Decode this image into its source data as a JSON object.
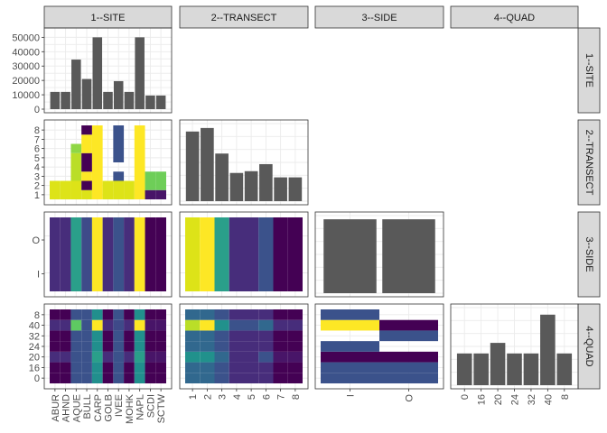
{
  "chart_data": {
    "type": "pairs-matrix",
    "variables": [
      "1--SITE",
      "2--TRANSECT",
      "3--SIDE",
      "4--QUAD"
    ],
    "scales": {
      "site": [
        "ABUR",
        "AHND",
        "AQUE",
        "BULL",
        "CARP",
        "GOLB",
        "IVEE",
        "MOHK",
        "NAPL",
        "SCDI",
        "SCTW"
      ],
      "transect": [
        "1",
        "2",
        "3",
        "4",
        "5",
        "6",
        "7",
        "8"
      ],
      "side": [
        "I",
        "O"
      ],
      "quad": [
        "0",
        "16",
        "20",
        "24",
        "32",
        "40",
        "8"
      ]
    },
    "site_y_ticks": [
      "0",
      "10000",
      "20000",
      "30000",
      "40000",
      "50000"
    ],
    "site_y_range": [
      0,
      54000
    ],
    "bars": {
      "site": {
        "values": [
          12000,
          12000,
          34500,
          21000,
          50000,
          12000,
          19500,
          12000,
          50000,
          9500,
          9500
        ],
        "max": 54000
      },
      "transect": {
        "values": [
          7.9,
          8.3,
          5.4,
          3.2,
          3.4,
          4.2,
          2.7,
          2.7
        ],
        "max": 8.8
      },
      "side": {
        "values": [
          1.0,
          1.0
        ],
        "max": 1.05
      },
      "quad": {
        "values": [
          4.5,
          4.5,
          6.0,
          4.5,
          4.5,
          10.0,
          4.5
        ],
        "max": 11.0
      }
    },
    "heatmaps": {
      "transect_by_site": {
        "columns": [
          [
            [
              1,
              2,
              "#dde318"
            ]
          ],
          [
            [
              1,
              2,
              "#dde318"
            ]
          ],
          [
            [
              1,
              2,
              "#dde318"
            ],
            [
              3,
              5,
              "#bade28"
            ],
            [
              6,
              6,
              "#8fd744"
            ]
          ],
          [
            [
              1,
              1,
              "#dde318"
            ],
            [
              2,
              2,
              "#440154"
            ],
            [
              3,
              3,
              "#fde725"
            ],
            [
              4,
              5,
              "#440154"
            ],
            [
              6,
              7,
              "#fde725"
            ],
            [
              8,
              8,
              "#440154"
            ]
          ],
          [
            [
              1,
              8,
              "#fde725"
            ]
          ],
          [
            [
              1,
              2,
              "#dde318"
            ]
          ],
          [
            [
              1,
              2,
              "#dde318"
            ],
            [
              3,
              3,
              "#3b528b"
            ],
            [
              5,
              8,
              "#3b528b"
            ]
          ],
          [
            [
              1,
              2,
              "#dde318"
            ]
          ],
          [
            [
              1,
              8,
              "#fde725"
            ]
          ],
          [
            [
              1,
              1,
              "#481568"
            ],
            [
              2,
              3,
              "#6ece58"
            ]
          ],
          [
            [
              1,
              1,
              "#481568"
            ],
            [
              2,
              3,
              "#6ece58"
            ]
          ]
        ]
      },
      "side_by_site": {
        "columns": [
          [
            "#472d7b",
            "#472d7b"
          ],
          [
            "#472d7b",
            "#472d7b"
          ],
          [
            "#2a9f8a",
            "#2a9f8a"
          ],
          [
            "#3e4a89",
            "#3e4a89"
          ],
          [
            "#fde725",
            "#fde725"
          ],
          [
            "#472d7b",
            "#472d7b"
          ],
          [
            "#3b528b",
            "#3b528b"
          ],
          [
            "#472d7b",
            "#472d7b"
          ],
          [
            "#fde725",
            "#fde725"
          ],
          [
            "#440154",
            "#440154"
          ],
          [
            "#440154",
            "#440154"
          ]
        ]
      },
      "side_by_transect": {
        "columns": [
          [
            "#dde318",
            "#dde318"
          ],
          [
            "#fde725",
            "#fde725"
          ],
          [
            "#2a9f8a",
            "#2a9f8a"
          ],
          [
            "#472d7b",
            "#472d7b"
          ],
          [
            "#472d7b",
            "#472d7b"
          ],
          [
            "#3b528b",
            "#3b528b"
          ],
          [
            "#440154",
            "#440154"
          ],
          [
            "#440154",
            "#440154"
          ]
        ]
      },
      "side_by_quad": {
        "cells": [
          [
            "I",
            "0",
            "#3b528b"
          ],
          [
            "I",
            "16",
            "#3b528b"
          ],
          [
            "I",
            "20",
            "#440154"
          ],
          [
            "I",
            "24",
            "#3b528b"
          ],
          [
            "I",
            "40",
            "#fde725"
          ],
          [
            "I",
            "8",
            "#3b528b"
          ],
          [
            "O",
            "0",
            "#3b528b"
          ],
          [
            "O",
            "16",
            "#3b528b"
          ],
          [
            "O",
            "20",
            "#440154"
          ],
          [
            "O",
            "32",
            "#3b528b"
          ],
          [
            "O",
            "40",
            "#440154"
          ]
        ]
      },
      "quad_by_site": {
        "rows_by_quad": [
          [
            "#440154",
            "#440154",
            "#3b528b",
            "#3b528b",
            "#218f8d",
            "#440154",
            "#3b528b",
            "#440154",
            "#218f8d",
            "#440154",
            "#440154"
          ],
          [
            "#440154",
            "#440154",
            "#3b528b",
            "#3b528b",
            "#218f8d",
            "#440154",
            "#3b528b",
            "#440154",
            "#218f8d",
            "#440154",
            "#440154"
          ],
          [
            "#472d7b",
            "#472d7b",
            "#3b528b",
            "#3b528b",
            "#2a9f8a",
            "#472d7b",
            "#3b528b",
            "#472d7b",
            "#2a9f8a",
            "#481568",
            "#481568"
          ],
          [
            "#440154",
            "#440154",
            "#3b528b",
            "#3b528b",
            "#218f8d",
            "#440154",
            "#3b528b",
            "#440154",
            "#218f8d",
            "#440154",
            "#440154"
          ],
          [
            "#440154",
            "#440154",
            "#3b528b",
            "#3b528b",
            "#218f8d",
            "#440154",
            "#3b528b",
            "#440154",
            "#218f8d",
            "#440154",
            "#440154"
          ],
          [
            "#472d7b",
            "#472d7b",
            "#5ec962",
            "#3b528b",
            "#fde725",
            "#472d7b",
            "#3e4a89",
            "#472d7b",
            "#fde725",
            "#481568",
            "#481568"
          ],
          [
            "#440154",
            "#440154",
            "#3b528b",
            "#3b528b",
            "#218f8d",
            "#440154",
            "#3b528b",
            "#440154",
            "#218f8d",
            "#440154",
            "#440154"
          ]
        ]
      },
      "quad_by_transect": {
        "rows_by_quad": [
          [
            "#31688e",
            "#31688e",
            "#3b528b",
            "#472d7b",
            "#472d7b",
            "#472d7b",
            "#440154",
            "#440154"
          ],
          [
            "#31688e",
            "#31688e",
            "#3b528b",
            "#472d7b",
            "#472d7b",
            "#472d7b",
            "#440154",
            "#440154"
          ],
          [
            "#21918c",
            "#21918c",
            "#31688e",
            "#472d7b",
            "#472d7b",
            "#3b528b",
            "#481568",
            "#481568"
          ],
          [
            "#31688e",
            "#31688e",
            "#3b528b",
            "#472d7b",
            "#472d7b",
            "#472d7b",
            "#440154",
            "#440154"
          ],
          [
            "#31688e",
            "#31688e",
            "#3b528b",
            "#472d7b",
            "#472d7b",
            "#472d7b",
            "#440154",
            "#440154"
          ],
          [
            "#bade28",
            "#fde725",
            "#21918c",
            "#3b528b",
            "#3b528b",
            "#31688e",
            "#472d7b",
            "#472d7b"
          ],
          [
            "#31688e",
            "#31688e",
            "#3b528b",
            "#472d7b",
            "#472d7b",
            "#472d7b",
            "#440154",
            "#440154"
          ]
        ]
      }
    },
    "quad_display_order": [
      "0",
      "16",
      "20",
      "24",
      "32",
      "40",
      "8"
    ],
    "quad_left_tick_labels": [
      "0",
      "16",
      "20",
      "24",
      "32",
      "40",
      "8"
    ],
    "colors": {
      "bar": "#595959",
      "strip_fill": "#d9d9d9",
      "panel_border": "#333333",
      "grid": "#ebebeb"
    }
  }
}
